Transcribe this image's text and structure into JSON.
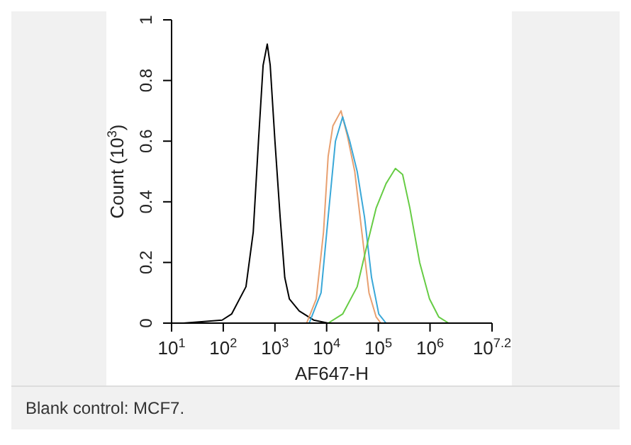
{
  "chart_data": {
    "type": "line",
    "xlabel": "AF647-H",
    "ylabel": "Count (10$^{3}$)",
    "log": "x",
    "grid": false,
    "marker": "none",
    "line_style": "solid",
    "xlim": [
      10,
      15848932
    ],
    "xticks": [
      {
        "value": 10,
        "label": "10$^{1}$"
      },
      {
        "value": 100,
        "label": "10$^{2}$"
      },
      {
        "value": 1000,
        "label": "10$^{3}$"
      },
      {
        "value": 10000,
        "label": "10$^{4}$"
      },
      {
        "value": 100000,
        "label": "10$^{5}$"
      },
      {
        "value": 1000000,
        "label": "10$^{6}$"
      },
      {
        "value": 15848932,
        "label": "10$^{7.2}$"
      }
    ],
    "ylim": [
      0,
      1
    ],
    "yticks": [
      0,
      0.2,
      0.4,
      0.6,
      0.8,
      1
    ],
    "series": [
      {
        "color": "#000000",
        "x": [
          17,
          95,
          145,
          275,
          380,
          480,
          590,
          710,
          810,
          1000,
          1260,
          1550,
          1900,
          2950,
          5600,
          10700
        ],
        "values": [
          0,
          0.01,
          0.03,
          0.12,
          0.3,
          0.6,
          0.85,
          0.92,
          0.85,
          0.6,
          0.35,
          0.15,
          0.08,
          0.04,
          0.01,
          0
        ]
      },
      {
        "color": "#e8a070",
        "x": [
          4100,
          6300,
          8700,
          10700,
          13200,
          19000,
          25000,
          35000,
          48000,
          66000,
          91000,
          112000
        ],
        "values": [
          0,
          0.08,
          0.3,
          0.55,
          0.65,
          0.7,
          0.62,
          0.5,
          0.3,
          0.1,
          0.02,
          0
        ]
      },
      {
        "color": "#3aa8d8",
        "x": [
          4600,
          7800,
          10700,
          14800,
          20400,
          28000,
          39000,
          54000,
          74000,
          102000,
          141000
        ],
        "values": [
          0,
          0.1,
          0.35,
          0.6,
          0.68,
          0.6,
          0.5,
          0.35,
          0.15,
          0.03,
          0
        ]
      },
      {
        "color": "#66cc44",
        "x": [
          10700,
          20400,
          39000,
          59000,
          91000,
          141000,
          214000,
          295000,
          407000,
          631000,
          977000,
          1480000,
          2290000
        ],
        "values": [
          0,
          0.03,
          0.12,
          0.25,
          0.38,
          0.46,
          0.51,
          0.49,
          0.38,
          0.2,
          0.08,
          0.02,
          0
        ]
      }
    ],
    "annotations": [
      "Blank control: MCF7."
    ]
  }
}
